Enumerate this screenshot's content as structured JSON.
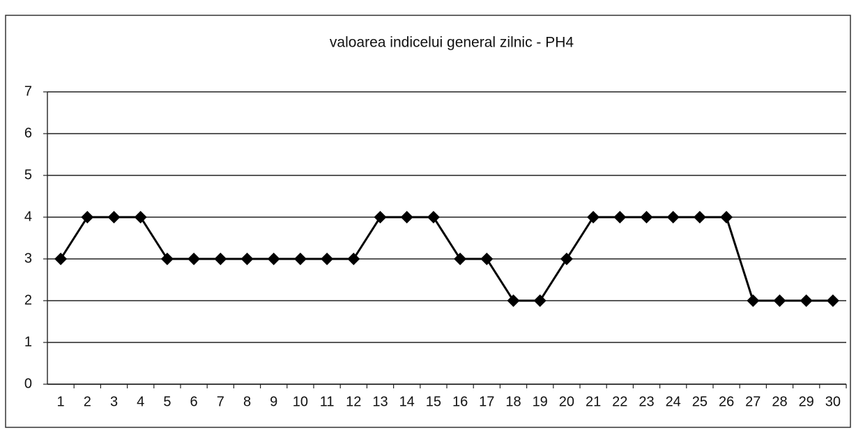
{
  "chart_data": {
    "type": "line",
    "title": "valoarea indicelui general zilnic - PH4",
    "categories": [
      "1",
      "2",
      "3",
      "4",
      "5",
      "6",
      "7",
      "8",
      "9",
      "10",
      "11",
      "12",
      "13",
      "14",
      "15",
      "16",
      "17",
      "18",
      "19",
      "20",
      "21",
      "22",
      "23",
      "24",
      "25",
      "26",
      "27",
      "28",
      "29",
      "30"
    ],
    "series": [
      {
        "name": "PH4",
        "color": "#000000",
        "values": [
          3,
          4,
          4,
          4,
          3,
          3,
          3,
          3,
          3,
          3,
          3,
          3,
          4,
          4,
          4,
          3,
          3,
          2,
          2,
          3,
          4,
          4,
          4,
          4,
          4,
          4,
          2,
          2,
          2,
          2
        ]
      }
    ],
    "ylim": [
      0,
      7
    ],
    "yticks": [
      0,
      1,
      2,
      3,
      4,
      5,
      6,
      7
    ],
    "grid": true
  }
}
